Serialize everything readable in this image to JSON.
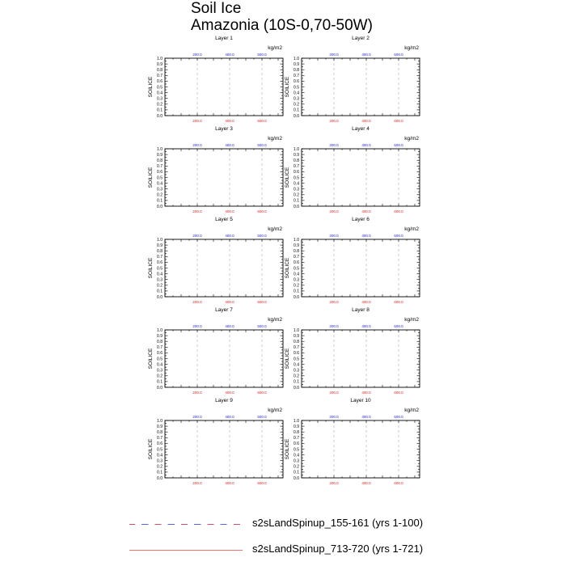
{
  "title": [
    "Soil Ice",
    "Amazonia (10S-0,70-50W)"
  ],
  "chart_data": {
    "type": "line",
    "panels": [
      {
        "title": "Layer 1"
      },
      {
        "title": "Layer 2"
      },
      {
        "title": "Layer 3"
      },
      {
        "title": "Layer 4"
      },
      {
        "title": "Layer 5"
      },
      {
        "title": "Layer 6"
      },
      {
        "title": "Layer 7"
      },
      {
        "title": "Layer 8"
      },
      {
        "title": "Layer 9"
      },
      {
        "title": "Layer 10"
      }
    ],
    "ylabel": "SOILICE",
    "units": "kg/m2",
    "ylim": [
      0,
      1
    ],
    "yticks": [
      "0.0",
      "0.1",
      "0.2",
      "0.3",
      "0.4",
      "0.5",
      "0.6",
      "0.7",
      "0.8",
      "0.9",
      "1.0"
    ],
    "xlim": [
      0,
      730
    ],
    "xticks": [
      200,
      400,
      600
    ],
    "xtick_labels": [
      "200.0",
      "400.0",
      "600.0"
    ],
    "grid": "dashed vertical at x ticks",
    "top_axis_color": "#2222dd",
    "bottom_axis_color": "#dd2222",
    "series": [
      {
        "name": "s2sLandSpinup_155-161 (yrs 1-100)",
        "style": "dashed",
        "color": "#7c5fb0",
        "values": []
      },
      {
        "name": "s2sLandSpinup_713-720 (yrs 1-721)",
        "style": "solid",
        "color": "#f07070",
        "values": []
      }
    ]
  }
}
